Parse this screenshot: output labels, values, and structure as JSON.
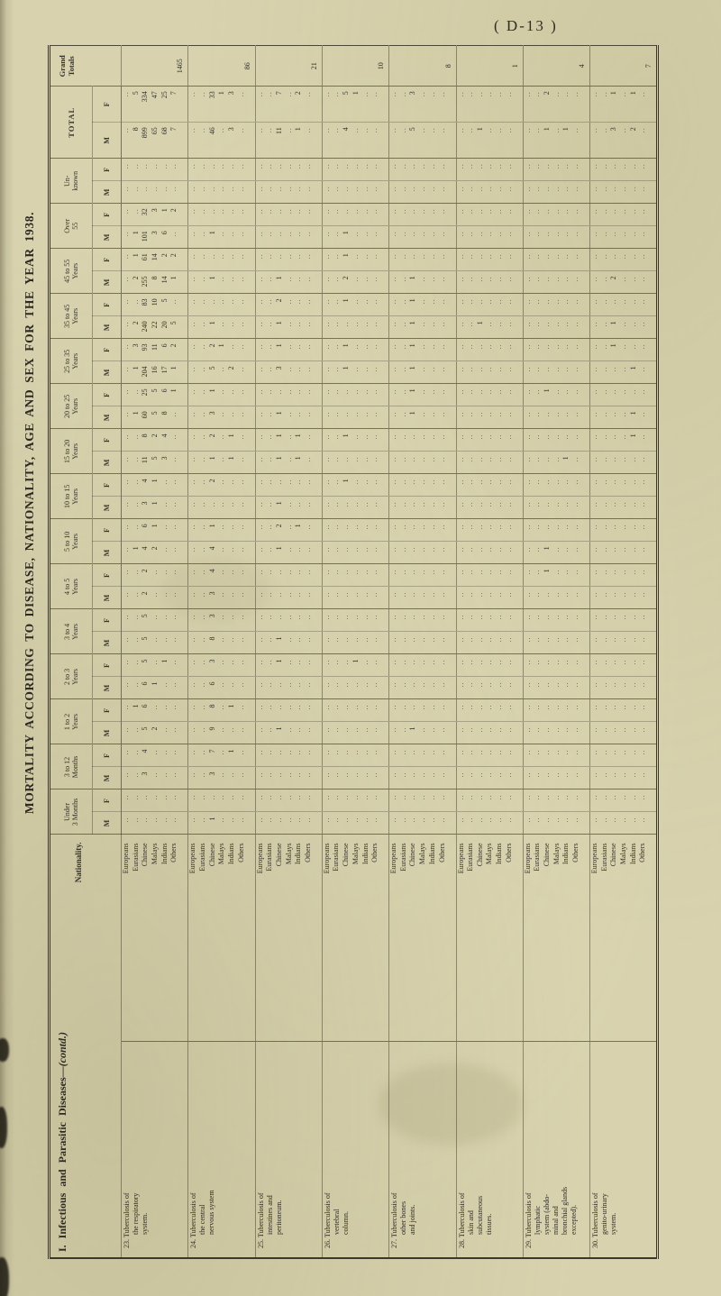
{
  "page": {
    "ref": "( D-13 )",
    "title": "MORTALITY ACCORDING TO DISEASE, NATIONALITY, AGE AND SEX FOR THE YEAR 1938.",
    "section": "I.  Infectious  and  Parasitic  Diseases—",
    "section_contd": "(contd.)"
  },
  "table": {
    "nationality_header": "Nationality.",
    "grand_totals_label": [
      "Grand",
      "Totals"
    ],
    "total_label": "TOTAL",
    "sex_labels": [
      "M",
      "F"
    ],
    "empty_marker": "..",
    "age_columns": [
      {
        "key": "u3m",
        "label": [
          "Under",
          "3 Months"
        ]
      },
      {
        "key": "m3to12",
        "label": [
          "3 to 12",
          "Months"
        ]
      },
      {
        "key": "y1to2",
        "label": [
          "1 to 2",
          "Years"
        ]
      },
      {
        "key": "y2to3",
        "label": [
          "2 to 3",
          "Years"
        ]
      },
      {
        "key": "y3to4",
        "label": [
          "3 to 4",
          "Years"
        ]
      },
      {
        "key": "y4to5",
        "label": [
          "4 to 5",
          "Years"
        ]
      },
      {
        "key": "y5to10",
        "label": [
          "5 to 10",
          "Years"
        ]
      },
      {
        "key": "y10to15",
        "label": [
          "10 to 15",
          "Years"
        ]
      },
      {
        "key": "y15to20",
        "label": [
          "15 to 20",
          "Years"
        ]
      },
      {
        "key": "y20to25",
        "label": [
          "20 to 25",
          "Years"
        ]
      },
      {
        "key": "y25to35",
        "label": [
          "25 to 35",
          "Years"
        ]
      },
      {
        "key": "y35to45",
        "label": [
          "35 to 45",
          "Years"
        ]
      },
      {
        "key": "y45to55",
        "label": [
          "45 to 55",
          "Years"
        ]
      },
      {
        "key": "over55",
        "label": [
          "Over",
          "55"
        ]
      },
      {
        "key": "unknown",
        "label": [
          "Un-",
          "known"
        ]
      }
    ],
    "nationalities": [
      "Europeans",
      "Eurasians",
      "Chinese",
      "Malays",
      "Indians",
      "Others"
    ],
    "diseases": [
      {
        "number": "23.",
        "name_lines": [
          "Tuberculosis of",
          "the respiratory",
          "system."
        ],
        "grand_total": "1465",
        "rows": {
          "Eurasians": {
            "M": {
              "y5to10": 1,
              "y20to25": 1,
              "y25to35": 1,
              "y35to45": 2,
              "y45to55": 2,
              "over55": 1,
              "total": 8
            },
            "F": {
              "y1to2": 1,
              "y25to35": 3,
              "y45to55": 1,
              "total": 5
            }
          },
          "Chinese": {
            "M": {
              "m3to12": 3,
              "y1to2": 5,
              "y2to3": 6,
              "y3to4": 5,
              "y4to5": 2,
              "y5to10": 4,
              "y10to15": 3,
              "y15to20": 11,
              "y20to25": 60,
              "y25to35": 204,
              "y35to45": 240,
              "y45to55": 255,
              "over55": 101,
              "total": 899
            },
            "F": {
              "m3to12": 4,
              "y1to2": 6,
              "y2to3": 5,
              "y3to4": 5,
              "y4to5": 2,
              "y5to10": 6,
              "y10to15": 4,
              "y15to20": 8,
              "y20to25": 25,
              "y25to35": 93,
              "y35to45": 83,
              "y45to55": 61,
              "over55": 32,
              "total": 334
            }
          },
          "Malays": {
            "M": {
              "y1to2": 2,
              "y2to3": 1,
              "y5to10": 2,
              "y10to15": 1,
              "y15to20": 5,
              "y20to25": 5,
              "y25to35": 16,
              "y35to45": 22,
              "y45to55": 8,
              "over55": 3,
              "total": 65
            },
            "F": {
              "y5to10": 1,
              "y10to15": 1,
              "y15to20": 2,
              "y20to25": 5,
              "y25to35": 11,
              "y35to45": 10,
              "y45to55": 14,
              "over55": 3,
              "total": 47
            }
          },
          "Indians": {
            "M": {
              "y15to20": 3,
              "y20to25": 8,
              "y25to35": 17,
              "y35to45": 20,
              "y45to55": 14,
              "over55": 6,
              "total": 68
            },
            "F": {
              "y2to3": 1,
              "y15to20": 4,
              "y20to25": 6,
              "y25to35": 6,
              "y35to45": 5,
              "y45to55": 2,
              "over55": 1,
              "total": 25
            }
          },
          "Others": {
            "M": {
              "y25to35": 1,
              "y35to45": 5,
              "y45to55": 1,
              "total": 7
            },
            "F": {
              "y20to25": 1,
              "y25to35": 2,
              "y45to55": 2,
              "over55": 2,
              "total": 7
            }
          }
        }
      },
      {
        "number": "24.",
        "name_lines": [
          "Tuberculosis of",
          "the central",
          "nervous system"
        ],
        "grand_total": "86",
        "rows": {
          "Chinese": {
            "M": {
              "u3m": 1,
              "m3to12": 3,
              "y1to2": 9,
              "y2to3": 6,
              "y3to4": 8,
              "y4to5": 3,
              "y5to10": 4,
              "y15to20": 1,
              "y20to25": 3,
              "y25to35": 5,
              "y35to45": 1,
              "y45to55": 1,
              "over55": 1,
              "total": 46
            },
            "F": {
              "m3to12": 7,
              "y1to2": 8,
              "y2to3": 3,
              "y3to4": 3,
              "y4to5": 4,
              "y5to10": 1,
              "y10to15": 2,
              "y15to20": 2,
              "y20to25": 1,
              "y25to35": 2,
              "total": 33
            }
          },
          "Malays": {
            "F": {
              "y25to35": 1,
              "total": 1
            }
          },
          "Indians": {
            "M": {
              "y15to20": 1,
              "y25to35": 2,
              "total": 3
            },
            "F": {
              "m3to12": 1,
              "y1to2": 1,
              "y15to20": 1,
              "total": 3
            }
          }
        }
      },
      {
        "number": "25.",
        "name_lines": [
          "Tuberculosis of",
          "intestines and",
          "peritoneum."
        ],
        "grand_total": "21",
        "rows": {
          "Chinese": {
            "M": {
              "y1to2": 1,
              "y3to4": 1,
              "y5to10": 1,
              "y10to15": 1,
              "y15to20": 1,
              "y20to25": 1,
              "y25to35": 3,
              "y35to45": 1,
              "y45to55": 1,
              "total": 11
            },
            "F": {
              "y2to3": 1,
              "y5to10": 2,
              "y15to20": 1,
              "y25to35": 1,
              "y35to45": 2,
              "total": 7
            }
          },
          "Indians": {
            "M": {
              "y15to20": 1,
              "total": 1
            },
            "F": {
              "y5to10": 1,
              "y15to20": 1,
              "total": 2
            }
          }
        }
      },
      {
        "number": "26.",
        "name_lines": [
          "Tuberculosis of",
          "vertebral",
          "column."
        ],
        "grand_total": "10",
        "rows": {
          "Chinese": {
            "M": {
              "y25to35": 1,
              "y45to55": 2,
              "over55": 1,
              "total": 4
            },
            "F": {
              "y10to15": 1,
              "y15to20": 1,
              "y25to35": 1,
              "y35to45": 1,
              "y45to55": 1,
              "total": 5
            }
          },
          "Malays": {
            "F": {
              "y2to3": 1,
              "total": 1
            }
          }
        }
      },
      {
        "number": "27.",
        "name_lines": [
          "Tuberculosis of",
          "other bones",
          "and joints."
        ],
        "grand_total": "8",
        "rows": {
          "Chinese": {
            "M": {
              "y1to2": 1,
              "y20to25": 1,
              "y25to35": 1,
              "y35to45": 1,
              "y45to55": 1,
              "total": 5
            },
            "F": {
              "y20to25": 1,
              "y25to35": 1,
              "y35to45": 1,
              "total": 3
            }
          }
        }
      },
      {
        "number": "28.",
        "name_lines": [
          "Tuberculosis of",
          "skin and",
          "subcutaneous",
          "tissues."
        ],
        "grand_total": "1",
        "rows": {
          "Chinese": {
            "M": {
              "y35to45": 1,
              "total": 1
            }
          }
        }
      },
      {
        "number": "29.",
        "name_lines": [
          "Tuberculosis of",
          "lymphatic",
          "system (abdo-",
          "minal and",
          "bronchial glands",
          "excepted)."
        ],
        "grand_total": "4",
        "rows": {
          "Chinese": {
            "M": {
              "y5to10": 1,
              "total": 1
            },
            "F": {
              "y4to5": 1,
              "y20to25": 1,
              "total": 2
            }
          },
          "Indians": {
            "M": {
              "y15to20": 1,
              "total": 1
            }
          }
        }
      },
      {
        "number": "30.",
        "name_lines": [
          "Tuberculosis of",
          "genito-urinary",
          "system."
        ],
        "grand_total": "7",
        "rows": {
          "Chinese": {
            "M": {
              "y35to45": 1,
              "y45to55": 2,
              "total": 3
            },
            "F": {
              "y25to35": 1,
              "total": 1
            }
          },
          "Indians": {
            "M": {
              "y20to25": 1,
              "y25to35": 1,
              "total": 2
            },
            "F": {
              "y15to20": 1,
              "total": 1
            }
          }
        }
      }
    ]
  }
}
